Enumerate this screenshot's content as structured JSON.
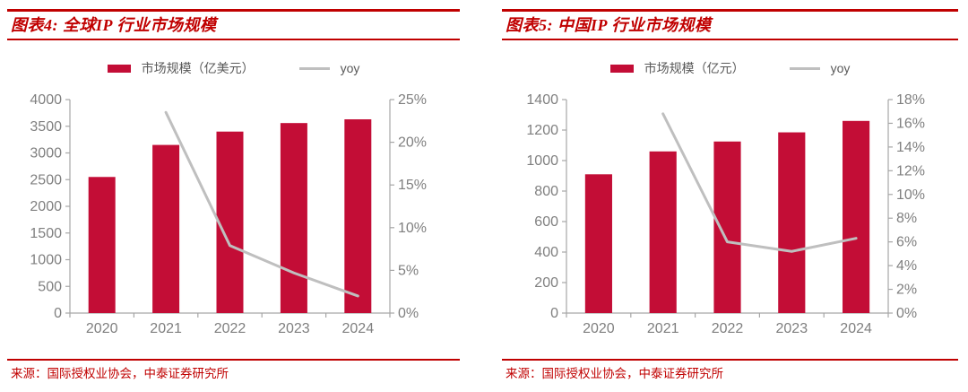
{
  "colors": {
    "title_red": "#C00000",
    "bar_red": "#C30D36",
    "line_gray": "#BFBFBF",
    "axis_text_gray": "#7F7F7F",
    "axis_line_gray": "#A6A6A6",
    "legend_text_gray": "#595959"
  },
  "panels": [
    {
      "title": "图表4:  全球IP 行业市场规模",
      "source": "来源：国际授权业协会，中泰证券研究所"
    },
    {
      "title": "图表5:  中国IP 行业市场规模",
      "source": "来源：国际授权业协会，中泰证券研究所"
    }
  ],
  "chart_data": [
    {
      "type": "bar+line",
      "title": "全球IP行业市场规模",
      "categories": [
        "2020",
        "2021",
        "2022",
        "2023",
        "2024"
      ],
      "series": [
        {
          "name": "市场规模（亿美元）",
          "type": "bar",
          "axis": "left",
          "values": [
            2550,
            3150,
            3400,
            3560,
            3630
          ]
        },
        {
          "name": "yoy",
          "type": "line",
          "axis": "right",
          "values": [
            null,
            23.5,
            7.9,
            4.7,
            2.0
          ],
          "unit": "%"
        }
      ],
      "left_axis": {
        "min": 0,
        "max": 4000,
        "step": 500,
        "suffix": ""
      },
      "right_axis": {
        "min": 0,
        "max": 25,
        "step": 5,
        "suffix": "%"
      },
      "legend_position": "top",
      "grid": false
    },
    {
      "type": "bar+line",
      "title": "中国IP行业市场规模",
      "categories": [
        "2020",
        "2021",
        "2022",
        "2023",
        "2024"
      ],
      "series": [
        {
          "name": "市场规模（亿元）",
          "type": "bar",
          "axis": "left",
          "values": [
            910,
            1060,
            1125,
            1185,
            1260
          ]
        },
        {
          "name": "yoy",
          "type": "line",
          "axis": "right",
          "values": [
            null,
            16.8,
            6.0,
            5.2,
            6.3
          ],
          "unit": "%"
        }
      ],
      "left_axis": {
        "min": 0,
        "max": 1400,
        "step": 200,
        "suffix": ""
      },
      "right_axis": {
        "min": 0,
        "max": 18,
        "step": 2,
        "suffix": "%"
      },
      "legend_position": "top",
      "grid": false
    }
  ]
}
